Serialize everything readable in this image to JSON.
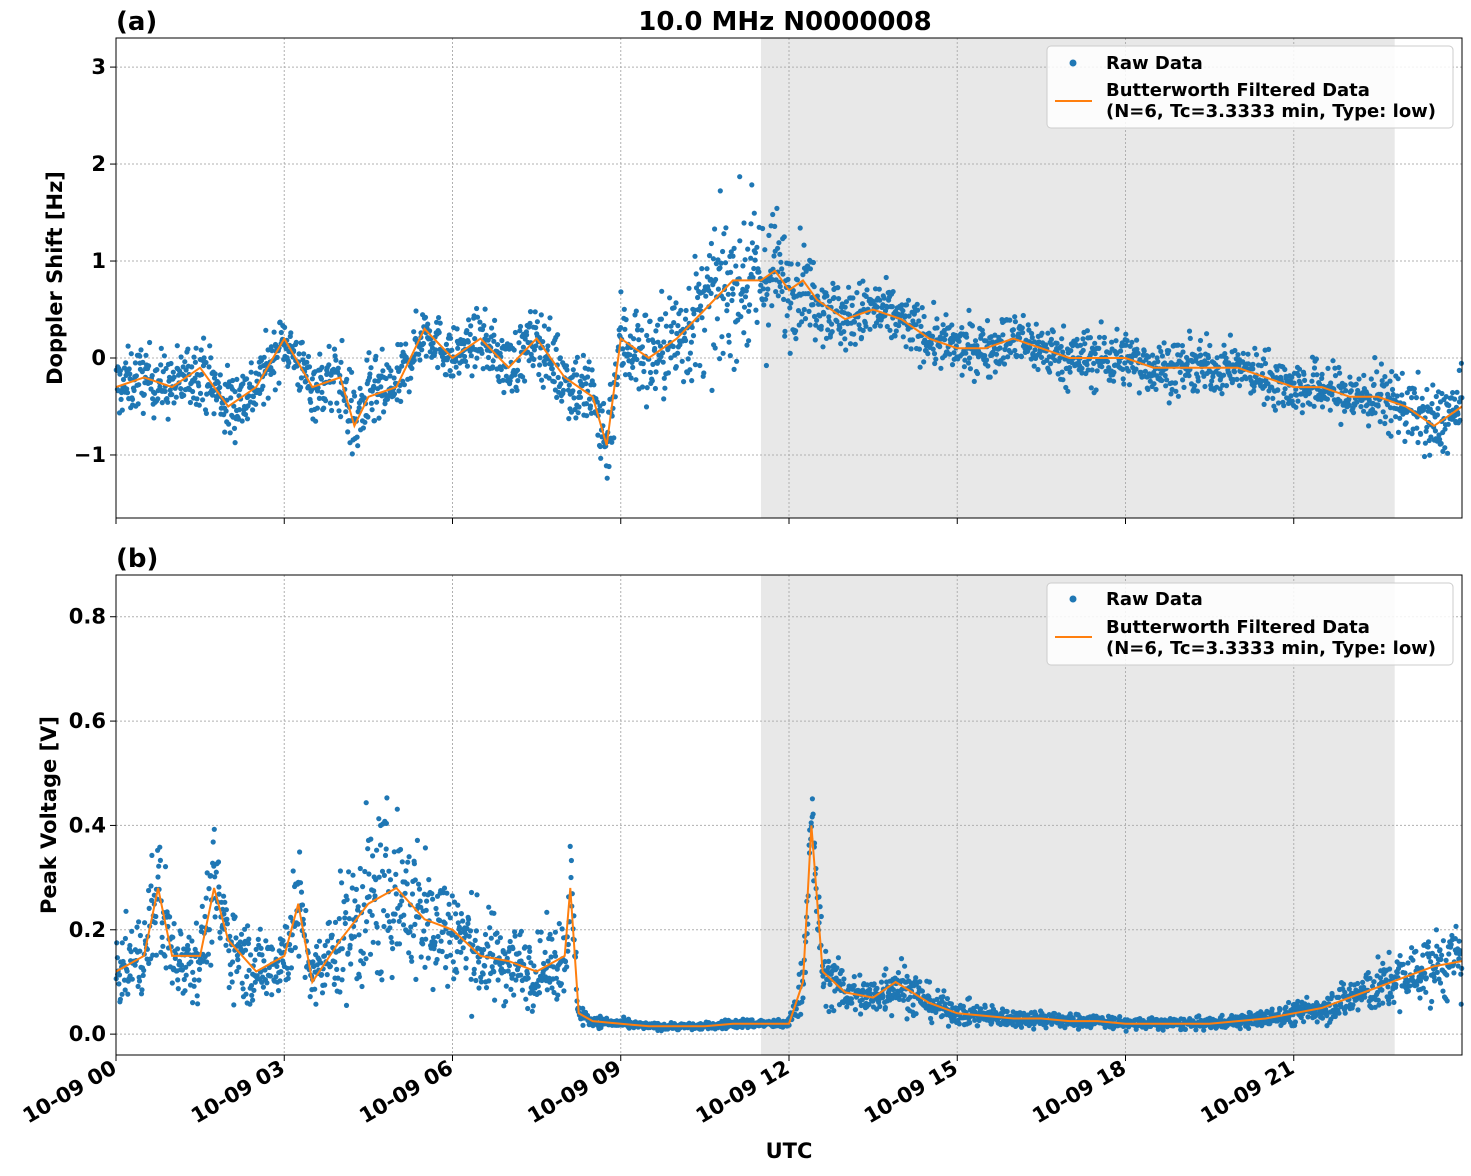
{
  "figure": {
    "title": "10.0 MHz N0000008",
    "xlabel": "UTC",
    "x_ticks": [
      "10-09 00",
      "10-09 03",
      "10-09 06",
      "10-09 09",
      "10-09 12",
      "10-09 15",
      "10-09 18",
      "10-09 21"
    ]
  },
  "colors": {
    "raw": "#1f77b4",
    "filtered": "#ff7f0e",
    "shade": "#e8e8e8",
    "grid": "#b0b0b0"
  },
  "legend": {
    "raw_label": "Raw Data",
    "filtered_label_line1": "Butterworth Filtered Data",
    "filtered_label_line2": "(N=6, Tc=3.3333 min, Type: low)"
  },
  "chart_data": [
    {
      "type": "scatter",
      "panel_label": "(a)",
      "ylabel": "Doppler Shift [Hz]",
      "xlim_hours": [
        0,
        24
      ],
      "ylim": [
        -1.65,
        3.3
      ],
      "y_ticks": [
        {
          "value": -1,
          "label": "−1"
        },
        {
          "value": 0,
          "label": "0"
        },
        {
          "value": 1,
          "label": "1"
        },
        {
          "value": 2,
          "label": "2"
        },
        {
          "value": 3,
          "label": "3"
        }
      ],
      "shaded_span_hours": [
        11.5,
        22.8
      ],
      "grid": true,
      "legend_position": "top-right",
      "series": [
        {
          "name": "Raw Data",
          "kind": "points",
          "x_hours": [
            0,
            0.5,
            1,
            1.5,
            2,
            2.5,
            3,
            3.5,
            4,
            4.25,
            4.5,
            5,
            5.5,
            6,
            6.5,
            7,
            7.5,
            8,
            8.5,
            8.75,
            9,
            9.5,
            10,
            10.5,
            11,
            11.5,
            11.75,
            12,
            12.25,
            12.5,
            13,
            13.5,
            14,
            14.5,
            15,
            15.5,
            16,
            16.5,
            17,
            17.5,
            18,
            18.5,
            19,
            19.5,
            20,
            20.5,
            21,
            21.5,
            22,
            22.5,
            23,
            23.5,
            24
          ],
          "y_center": [
            -0.3,
            -0.2,
            -0.3,
            -0.1,
            -0.5,
            -0.3,
            0.2,
            -0.3,
            -0.2,
            -0.7,
            -0.4,
            -0.3,
            0.3,
            0.0,
            0.2,
            -0.1,
            0.2,
            -0.2,
            -0.4,
            -0.9,
            0.2,
            0.0,
            0.2,
            0.5,
            0.8,
            0.8,
            0.9,
            0.7,
            0.8,
            0.6,
            0.4,
            0.5,
            0.4,
            0.2,
            0.1,
            0.1,
            0.2,
            0.1,
            0.0,
            0.0,
            0.0,
            -0.1,
            -0.1,
            -0.1,
            -0.1,
            -0.2,
            -0.3,
            -0.3,
            -0.4,
            -0.4,
            -0.5,
            -0.7,
            -0.5
          ],
          "y_spread": [
            0.3,
            0.3,
            0.3,
            0.3,
            0.35,
            0.3,
            0.25,
            0.3,
            0.35,
            0.4,
            0.35,
            0.3,
            0.25,
            0.25,
            0.25,
            0.3,
            0.3,
            0.35,
            0.4,
            0.4,
            0.45,
            0.45,
            0.5,
            0.6,
            0.7,
            0.7,
            0.6,
            0.5,
            0.4,
            0.35,
            0.3,
            0.3,
            0.25,
            0.25,
            0.25,
            0.25,
            0.25,
            0.25,
            0.25,
            0.3,
            0.25,
            0.25,
            0.25,
            0.25,
            0.2,
            0.25,
            0.25,
            0.25,
            0.25,
            0.3,
            0.3,
            0.35,
            0.3
          ]
        },
        {
          "name": "Butterworth Filtered Data (N=6, Tc=3.3333 min, Type: low)",
          "kind": "line",
          "x_hours": [
            0,
            0.5,
            1,
            1.5,
            2,
            2.5,
            3,
            3.5,
            4,
            4.25,
            4.5,
            5,
            5.5,
            6,
            6.5,
            7,
            7.5,
            8,
            8.5,
            8.75,
            9,
            9.5,
            10,
            10.5,
            11,
            11.5,
            11.75,
            12,
            12.25,
            12.5,
            13,
            13.5,
            14,
            14.5,
            15,
            15.5,
            16,
            16.5,
            17,
            17.5,
            18,
            18.5,
            19,
            19.5,
            20,
            20.5,
            21,
            21.5,
            22,
            22.5,
            23,
            23.5,
            24
          ],
          "y": [
            -0.3,
            -0.2,
            -0.3,
            -0.1,
            -0.5,
            -0.3,
            0.2,
            -0.3,
            -0.2,
            -0.7,
            -0.4,
            -0.3,
            0.3,
            0.0,
            0.2,
            -0.1,
            0.2,
            -0.2,
            -0.4,
            -0.9,
            0.2,
            0.0,
            0.2,
            0.5,
            0.8,
            0.8,
            0.9,
            0.7,
            0.8,
            0.6,
            0.4,
            0.5,
            0.4,
            0.2,
            0.1,
            0.1,
            0.2,
            0.1,
            0.0,
            0.0,
            0.0,
            -0.1,
            -0.1,
            -0.1,
            -0.1,
            -0.2,
            -0.3,
            -0.3,
            -0.4,
            -0.4,
            -0.5,
            -0.7,
            -0.5
          ]
        }
      ]
    },
    {
      "type": "scatter",
      "panel_label": "(b)",
      "ylabel": "Peak Voltage [V]",
      "xlim_hours": [
        0,
        24
      ],
      "ylim": [
        -0.04,
        0.88
      ],
      "y_ticks": [
        {
          "value": 0.0,
          "label": "0.0"
        },
        {
          "value": 0.2,
          "label": "0.2"
        },
        {
          "value": 0.4,
          "label": "0.4"
        },
        {
          "value": 0.6,
          "label": "0.6"
        },
        {
          "value": 0.8,
          "label": "0.8"
        }
      ],
      "shaded_span_hours": [
        11.5,
        22.8
      ],
      "grid": true,
      "legend_position": "top-right",
      "series": [
        {
          "name": "Raw Data",
          "kind": "points",
          "x_hours": [
            0,
            0.5,
            0.75,
            1,
            1.5,
            1.75,
            2,
            2.5,
            3,
            3.25,
            3.5,
            4,
            4.5,
            5,
            5.5,
            6,
            6.5,
            7,
            7.5,
            8,
            8.1,
            8.25,
            8.5,
            9,
            9.5,
            10,
            10.5,
            11,
            11.5,
            11.75,
            12,
            12.25,
            12.4,
            12.6,
            13,
            13.5,
            13.9,
            14.5,
            15,
            15.5,
            16,
            16.5,
            17,
            17.5,
            18,
            18.5,
            19,
            19.5,
            20,
            20.5,
            21,
            21.5,
            22,
            22.5,
            23,
            23.5,
            24
          ],
          "y_center": [
            0.12,
            0.15,
            0.28,
            0.15,
            0.15,
            0.28,
            0.18,
            0.12,
            0.15,
            0.25,
            0.1,
            0.18,
            0.25,
            0.28,
            0.22,
            0.2,
            0.15,
            0.14,
            0.12,
            0.15,
            0.28,
            0.04,
            0.025,
            0.02,
            0.015,
            0.015,
            0.015,
            0.02,
            0.02,
            0.02,
            0.02,
            0.1,
            0.4,
            0.12,
            0.08,
            0.07,
            0.1,
            0.06,
            0.04,
            0.035,
            0.03,
            0.03,
            0.025,
            0.025,
            0.02,
            0.02,
            0.02,
            0.02,
            0.025,
            0.03,
            0.04,
            0.05,
            0.07,
            0.09,
            0.11,
            0.13,
            0.14
          ],
          "y_spread": [
            0.06,
            0.07,
            0.12,
            0.07,
            0.07,
            0.1,
            0.08,
            0.06,
            0.07,
            0.1,
            0.05,
            0.1,
            0.15,
            0.14,
            0.12,
            0.1,
            0.08,
            0.07,
            0.06,
            0.07,
            0.1,
            0.02,
            0.01,
            0.008,
            0.006,
            0.006,
            0.006,
            0.008,
            0.008,
            0.008,
            0.008,
            0.05,
            0.12,
            0.05,
            0.04,
            0.035,
            0.05,
            0.03,
            0.02,
            0.02,
            0.015,
            0.015,
            0.012,
            0.012,
            0.01,
            0.01,
            0.01,
            0.01,
            0.012,
            0.015,
            0.02,
            0.025,
            0.035,
            0.045,
            0.05,
            0.06,
            0.06
          ]
        },
        {
          "name": "Butterworth Filtered Data (N=6, Tc=3.3333 min, Type: low)",
          "kind": "line",
          "x_hours": [
            0,
            0.5,
            0.75,
            1,
            1.5,
            1.75,
            2,
            2.5,
            3,
            3.25,
            3.5,
            4,
            4.5,
            5,
            5.5,
            6,
            6.5,
            7,
            7.5,
            8,
            8.1,
            8.25,
            8.5,
            9,
            9.5,
            10,
            10.5,
            11,
            11.5,
            11.75,
            12,
            12.25,
            12.4,
            12.6,
            13,
            13.5,
            13.9,
            14.5,
            15,
            15.5,
            16,
            16.5,
            17,
            17.5,
            18,
            18.5,
            19,
            19.5,
            20,
            20.5,
            21,
            21.5,
            22,
            22.5,
            23,
            23.5,
            24
          ],
          "y": [
            0.12,
            0.15,
            0.28,
            0.15,
            0.15,
            0.28,
            0.18,
            0.12,
            0.15,
            0.25,
            0.1,
            0.18,
            0.25,
            0.28,
            0.22,
            0.2,
            0.15,
            0.14,
            0.12,
            0.15,
            0.28,
            0.04,
            0.025,
            0.02,
            0.015,
            0.015,
            0.015,
            0.02,
            0.02,
            0.02,
            0.02,
            0.1,
            0.4,
            0.12,
            0.08,
            0.07,
            0.1,
            0.06,
            0.04,
            0.035,
            0.03,
            0.03,
            0.025,
            0.025,
            0.02,
            0.02,
            0.02,
            0.02,
            0.025,
            0.03,
            0.04,
            0.05,
            0.07,
            0.09,
            0.11,
            0.13,
            0.14
          ]
        }
      ]
    }
  ]
}
